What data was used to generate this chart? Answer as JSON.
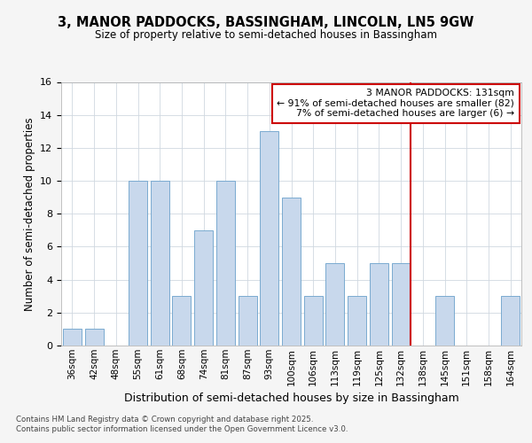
{
  "title": "3, MANOR PADDOCKS, BASSINGHAM, LINCOLN, LN5 9GW",
  "subtitle": "Size of property relative to semi-detached houses in Bassingham",
  "xlabel": "Distribution of semi-detached houses by size in Bassingham",
  "ylabel": "Number of semi-detached properties",
  "categories": [
    "36sqm",
    "42sqm",
    "48sqm",
    "55sqm",
    "61sqm",
    "68sqm",
    "74sqm",
    "81sqm",
    "87sqm",
    "93sqm",
    "100sqm",
    "106sqm",
    "113sqm",
    "119sqm",
    "125sqm",
    "132sqm",
    "138sqm",
    "145sqm",
    "151sqm",
    "158sqm",
    "164sqm"
  ],
  "values": [
    1,
    1,
    0,
    10,
    10,
    3,
    7,
    10,
    3,
    13,
    9,
    3,
    5,
    3,
    5,
    5,
    0,
    3,
    0,
    0,
    3
  ],
  "bar_color": "#c8d8ec",
  "bar_edge_color": "#7aaad0",
  "vline_index": 15,
  "vline_color": "#cc0000",
  "ylim": [
    0,
    16
  ],
  "yticks": [
    0,
    2,
    4,
    6,
    8,
    10,
    12,
    14,
    16
  ],
  "annotation_title": "3 MANOR PADDOCKS: 131sqm",
  "annotation_line1": "← 91% of semi-detached houses are smaller (82)",
  "annotation_line2": "7% of semi-detached houses are larger (6) →",
  "annotation_box_color": "#cc0000",
  "footer_line1": "Contains HM Land Registry data © Crown copyright and database right 2025.",
  "footer_line2": "Contains public sector information licensed under the Open Government Licence v3.0.",
  "background_color": "#f5f5f5",
  "plot_background_color": "#ffffff",
  "grid_color": "#d0d8e0"
}
